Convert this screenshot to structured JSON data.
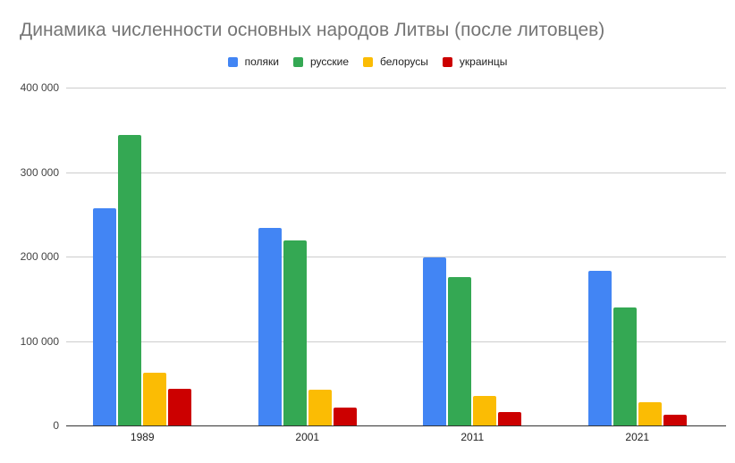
{
  "chart_data": {
    "type": "bar",
    "title": "Динамика численности основных народов Литвы (после литовцев)",
    "xlabel": "",
    "ylabel": "",
    "ylim": [
      0,
      400000
    ],
    "yticks": [
      "0",
      "100 000",
      "200 000",
      "300 000",
      "400 000"
    ],
    "grid": true,
    "legend_position": "top",
    "categories": [
      "1989",
      "2001",
      "2011",
      "2021"
    ],
    "series": [
      {
        "name": "поляки",
        "color": "#4285f4",
        "values": [
          257000,
          234000,
          199000,
          183000
        ]
      },
      {
        "name": "русские",
        "color": "#34a853",
        "values": [
          344000,
          219000,
          176000,
          140000
        ]
      },
      {
        "name": "белорусы",
        "color": "#fbbc04",
        "values": [
          62000,
          42000,
          35000,
          28000
        ]
      },
      {
        "name": "украинцы",
        "color": "#cc0000",
        "values": [
          43000,
          21000,
          16000,
          13000
        ]
      }
    ]
  }
}
